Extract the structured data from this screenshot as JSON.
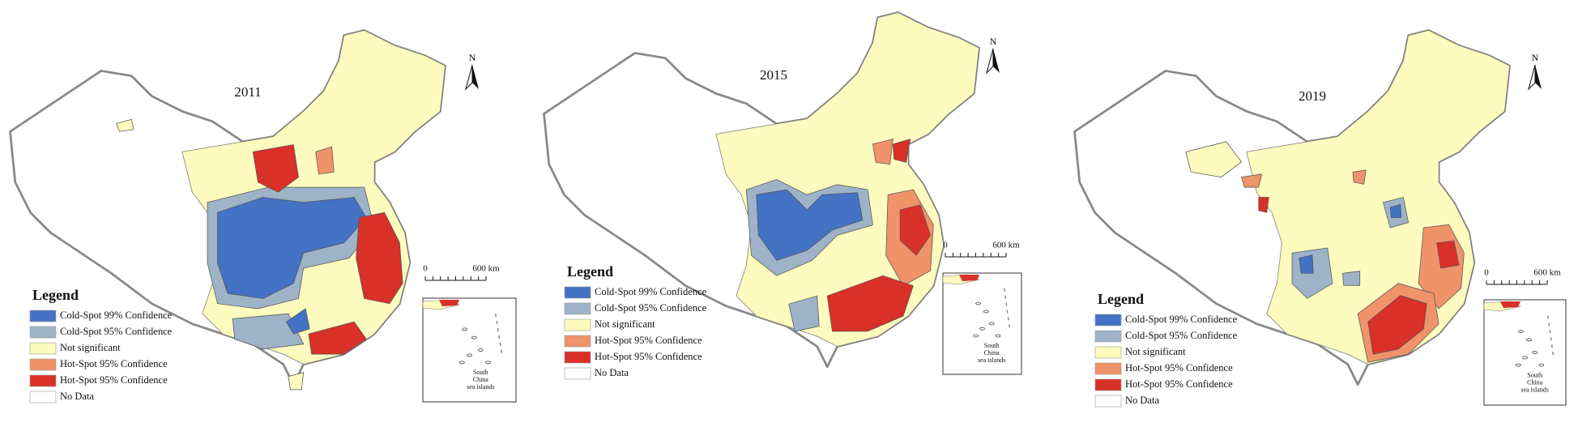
{
  "panels": [
    {
      "year": "2011",
      "north": "N",
      "scale": {
        "zero": "0",
        "distance": "600 km"
      },
      "inset_label": [
        "South",
        "China",
        "sea islands"
      ],
      "legend": {
        "title": "Legend",
        "items": [
          {
            "label": "Cold-Spot 99% Confidence",
            "color": "#4472c4"
          },
          {
            "label": "Cold-Spot 95% Confidence",
            "color": "#9eb3c8"
          },
          {
            "label": "Not significant",
            "color": "#fdfbbd"
          },
          {
            "label": "Hot-Spot 95% Confidence",
            "color": "#f0936a"
          },
          {
            "label": "Hot-Spot 95% Confidence",
            "color": "#d93028"
          },
          {
            "label": "No Data",
            "color": "#ffffff"
          }
        ]
      }
    },
    {
      "year": "2015",
      "north": "N",
      "scale": {
        "zero": "0",
        "distance": "600 km"
      },
      "inset_label": [
        "South",
        "China",
        "sea islands"
      ],
      "legend": {
        "title": "Legend",
        "items": [
          {
            "label": "Cold-Spot 99% Confidence",
            "color": "#4472c4"
          },
          {
            "label": "Cold-Spot 95% Confidence",
            "color": "#9eb3c8"
          },
          {
            "label": "Not significant",
            "color": "#fdfbbd"
          },
          {
            "label": "Hot-Spot 95% Confidence",
            "color": "#f0936a"
          },
          {
            "label": "Hot-Spot 95% Confidence",
            "color": "#d93028"
          },
          {
            "label": "No Data",
            "color": "#ffffff"
          }
        ]
      }
    },
    {
      "year": "2019",
      "north": "N",
      "scale": {
        "zero": "0",
        "distance": "600 km"
      },
      "inset_label": [
        "South",
        "China",
        "sea islands"
      ],
      "legend": {
        "title": "Legend",
        "items": [
          {
            "label": "Cold-Spot 99% Confidence",
            "color": "#4472c4"
          },
          {
            "label": "Cold-Spot 95% Confidence",
            "color": "#9eb3c8"
          },
          {
            "label": "Not significant",
            "color": "#fdfbbd"
          },
          {
            "label": "Hot-Spot 95% Confidence",
            "color": "#f0936a"
          },
          {
            "label": "Hot-Spot 95% Confidence",
            "color": "#d93028"
          },
          {
            "label": "No Data",
            "color": "#ffffff"
          }
        ]
      }
    }
  ]
}
